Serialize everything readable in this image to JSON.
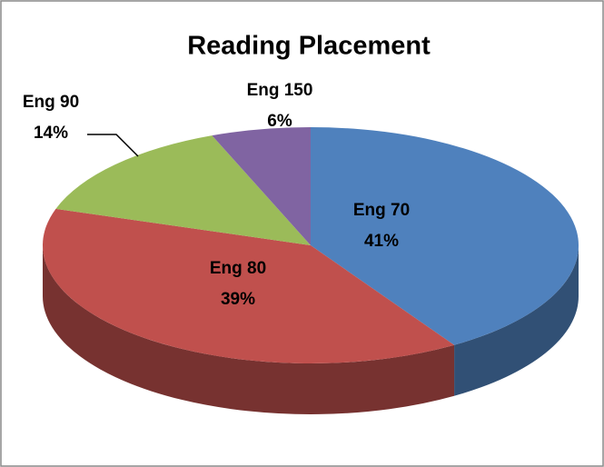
{
  "chart_data": {
    "type": "pie",
    "title": "Reading Placement",
    "categories": [
      "Eng 70",
      "Eng 80",
      "Eng 90",
      "Eng 150"
    ],
    "values": [
      41,
      39,
      14,
      6
    ],
    "value_labels": [
      "41%",
      "39%",
      "14%",
      "6%"
    ],
    "colors": [
      "#4f81bd",
      "#c0504d",
      "#9bbb59",
      "#8064a2"
    ]
  }
}
